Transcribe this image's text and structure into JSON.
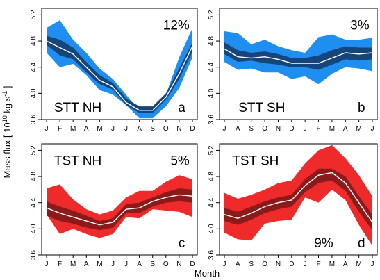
{
  "ylabel": "Mass flux [ 10",
  "ylabel_exp": "10",
  "ylabel_units": " kg s",
  "ylabel_units_exp": "-1",
  "ylabel_close": " ]",
  "xlabel": "Month",
  "colors": {
    "blue_outer": "#1e8ff0",
    "blue_inner": "#15457a",
    "red_outer": "#ee2a2a",
    "red_inner": "#8c1a1a",
    "median": "#ffffff"
  },
  "chart_data": [
    {
      "type": "area",
      "panel_letter": "a",
      "region": "STT NH",
      "percent": "12%",
      "months": [
        "J",
        "F",
        "M",
        "A",
        "M",
        "J",
        "J",
        "A",
        "S",
        "O",
        "N",
        "D"
      ],
      "ylim": [
        3.6,
        5.3
      ],
      "yticks": [
        "3.6",
        "4.0",
        "4.4",
        "4.8",
        "5.2"
      ],
      "color_scheme": "blue",
      "outer_upper": [
        5.0,
        5.12,
        4.82,
        4.62,
        4.38,
        4.22,
        3.98,
        3.72,
        3.7,
        3.98,
        4.55,
        5.0
      ],
      "outer_lower": [
        4.62,
        4.4,
        4.45,
        4.28,
        4.05,
        3.98,
        3.82,
        3.62,
        3.62,
        3.8,
        4.08,
        4.55
      ],
      "inner_upper": [
        4.88,
        4.82,
        4.7,
        4.48,
        4.28,
        4.16,
        3.92,
        3.8,
        3.8,
        4.0,
        4.38,
        4.78
      ],
      "inner_lower": [
        4.74,
        4.58,
        4.52,
        4.32,
        4.14,
        4.06,
        3.82,
        3.7,
        3.7,
        3.9,
        4.22,
        4.64
      ],
      "median": [
        4.8,
        4.7,
        4.6,
        4.4,
        4.2,
        4.1,
        3.86,
        3.74,
        3.74,
        3.94,
        4.3,
        4.72
      ]
    },
    {
      "type": "area",
      "panel_letter": "b",
      "region": "STT SH",
      "percent": "3%",
      "months": [
        "J",
        "A",
        "S",
        "O",
        "N",
        "D",
        "J",
        "F",
        "M",
        "A",
        "M",
        "J"
      ],
      "ylim": [
        3.6,
        5.3
      ],
      "yticks": [
        "3.6",
        "4.0",
        "4.4",
        "4.8",
        "5.2"
      ],
      "color_scheme": "blue",
      "outer_upper": [
        4.95,
        4.92,
        4.75,
        4.82,
        4.72,
        4.66,
        4.62,
        4.86,
        4.9,
        4.82,
        4.82,
        4.85
      ],
      "outer_lower": [
        4.48,
        4.36,
        4.38,
        4.32,
        4.32,
        4.22,
        4.26,
        4.14,
        4.3,
        4.4,
        4.38,
        4.34
      ],
      "inner_upper": [
        4.78,
        4.66,
        4.62,
        4.64,
        4.6,
        4.54,
        4.54,
        4.58,
        4.66,
        4.72,
        4.7,
        4.7
      ],
      "inner_lower": [
        4.6,
        4.48,
        4.5,
        4.46,
        4.44,
        4.4,
        4.4,
        4.36,
        4.44,
        4.52,
        4.5,
        4.52
      ],
      "median": [
        4.68,
        4.56,
        4.54,
        4.56,
        4.52,
        4.46,
        4.46,
        4.46,
        4.54,
        4.62,
        4.6,
        4.62
      ]
    },
    {
      "type": "area",
      "panel_letter": "c",
      "region": "TST NH",
      "percent": "5%",
      "months": [
        "J",
        "F",
        "M",
        "A",
        "M",
        "J",
        "J",
        "A",
        "S",
        "O",
        "N",
        "D"
      ],
      "ylim": [
        3.6,
        5.3
      ],
      "yticks": [
        "3.6",
        "4.0",
        "4.4",
        "4.8",
        "5.2"
      ],
      "color_scheme": "red",
      "outer_upper": [
        4.62,
        4.68,
        4.45,
        4.3,
        4.22,
        4.28,
        4.48,
        4.58,
        4.58,
        4.72,
        4.82,
        4.76
      ],
      "outer_lower": [
        4.22,
        3.92,
        4.0,
        3.92,
        3.86,
        3.92,
        4.18,
        4.16,
        4.3,
        4.28,
        4.26,
        4.18
      ],
      "inner_upper": [
        4.42,
        4.34,
        4.28,
        4.2,
        4.12,
        4.16,
        4.38,
        4.4,
        4.48,
        4.56,
        4.62,
        4.6
      ],
      "inner_lower": [
        4.2,
        4.12,
        4.08,
        4.02,
        3.98,
        4.02,
        4.24,
        4.24,
        4.34,
        4.4,
        4.42,
        4.4
      ],
      "median": [
        4.32,
        4.24,
        4.18,
        4.12,
        4.06,
        4.1,
        4.3,
        4.32,
        4.42,
        4.48,
        4.52,
        4.5
      ]
    },
    {
      "type": "area",
      "panel_letter": "d",
      "region": "TST SH",
      "percent": "9%",
      "months": [
        "J",
        "A",
        "S",
        "O",
        "N",
        "D",
        "J",
        "F",
        "M",
        "A",
        "M",
        "J"
      ],
      "ylim": [
        3.6,
        5.3
      ],
      "yticks": [
        "3.6",
        "4.0",
        "4.4",
        "4.8",
        "5.2"
      ],
      "color_scheme": "red",
      "outer_upper": [
        4.55,
        4.46,
        4.52,
        4.6,
        4.7,
        4.74,
        5.0,
        5.2,
        5.28,
        5.08,
        4.82,
        4.5
      ],
      "outer_lower": [
        3.94,
        3.84,
        3.82,
        4.08,
        4.12,
        4.14,
        4.48,
        4.4,
        4.6,
        4.44,
        4.06,
        3.74
      ],
      "inner_upper": [
        4.32,
        4.26,
        4.34,
        4.42,
        4.48,
        4.52,
        4.76,
        4.92,
        4.92,
        4.8,
        4.5,
        4.22
      ],
      "inner_lower": [
        4.12,
        4.06,
        4.14,
        4.24,
        4.3,
        4.34,
        4.56,
        4.7,
        4.74,
        4.58,
        4.26,
        3.98
      ],
      "median": [
        4.22,
        4.16,
        4.24,
        4.34,
        4.4,
        4.44,
        4.66,
        4.82,
        4.86,
        4.7,
        4.4,
        4.1
      ]
    }
  ]
}
